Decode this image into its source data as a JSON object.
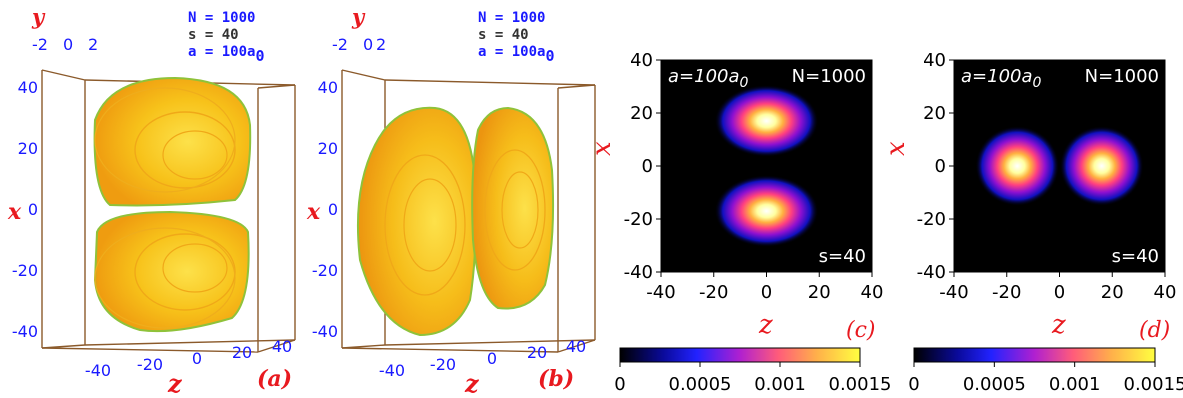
{
  "panels_3d": [
    {
      "id": "a",
      "tag": "(a)",
      "info": {
        "N": "N = 1000",
        "s": "s = 40",
        "a_main": "a = 100a",
        "a_sub": "0"
      },
      "axis_titles": {
        "x": "x",
        "y": "y",
        "z": "z"
      },
      "x_ticks": [
        "40",
        "20",
        "0",
        "-20",
        "-40"
      ],
      "y_ticks": [
        "-2",
        "0",
        "2"
      ],
      "z_ticks": [
        "-40",
        "-20",
        "0",
        "20",
        "40"
      ]
    },
    {
      "id": "b",
      "tag": "(b)",
      "info": {
        "N": "N = 1000",
        "s": "s = 40",
        "a_main": "a = 100a",
        "a_sub": "0"
      },
      "axis_titles": {
        "x": "x",
        "y": "y",
        "z": "z"
      },
      "x_ticks": [
        "40",
        "20",
        "0",
        "-20",
        "-40"
      ],
      "y_ticks": [
        "-2",
        "0",
        "2"
      ],
      "z_ticks": [
        "-40",
        "-20",
        "0",
        "20",
        "40"
      ]
    }
  ],
  "panels_2d": [
    {
      "id": "c",
      "tag": "(c)",
      "inset_a": "a=100a",
      "inset_a_sub": "0",
      "inset_N": "N=1000",
      "inset_s": "s=40",
      "xlabel": "z",
      "ylabel": "x",
      "x_ticks": [
        "-40",
        "-20",
        "0",
        "20",
        "40"
      ],
      "y_ticks": [
        "40",
        "20",
        "0",
        "-20",
        "-40"
      ]
    },
    {
      "id": "d",
      "tag": "(d)",
      "inset_a": "a=100a",
      "inset_a_sub": "0",
      "inset_N": "N=1000",
      "inset_s": "s=40",
      "xlabel": "z",
      "ylabel": "x",
      "x_ticks": [
        "-40",
        "-20",
        "0",
        "20",
        "40"
      ],
      "y_ticks": [
        "40",
        "20",
        "0",
        "-20",
        "-40"
      ]
    }
  ],
  "colorbars": [
    {
      "ticks": [
        "0",
        "0.0005",
        "0.001",
        "0.0015"
      ]
    },
    {
      "ticks": [
        "0",
        "0.0005",
        "0.001",
        "0.0015"
      ]
    }
  ],
  "chart_data": [
    {
      "type": "heatmap",
      "panel": "c",
      "xlabel": "z",
      "ylabel": "x",
      "xlim": [
        -40,
        40
      ],
      "ylim": [
        -40,
        40
      ],
      "colorbar_range": [
        0,
        0.0015
      ],
      "peaks": [
        {
          "z": 0,
          "x": 17,
          "value": 0.0015
        },
        {
          "z": 0,
          "x": -17,
          "value": 0.0015
        }
      ]
    },
    {
      "type": "heatmap",
      "panel": "d",
      "xlabel": "z",
      "ylabel": "x",
      "xlim": [
        -40,
        40
      ],
      "ylim": [
        -40,
        40
      ],
      "colorbar_range": [
        0,
        0.0015
      ],
      "peaks": [
        {
          "z": -16,
          "x": 0,
          "value": 0.0015
        },
        {
          "z": 16,
          "x": 0,
          "value": 0.0015
        }
      ]
    }
  ],
  "colors": {
    "axis_blue": "#1a1aff",
    "label_red": "#e8191f",
    "box_brown": "#8b5a2b",
    "surface_yellow": "#f7c21a",
    "surface_orange": "#f2a012",
    "surface_green": "#9fcf3a"
  }
}
